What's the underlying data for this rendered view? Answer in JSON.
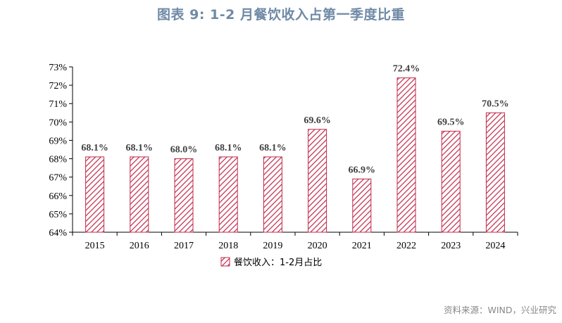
{
  "title": "图表 9:  1-2 月餐饮收入占第一季度比重",
  "source": "资料来源：WIND，兴业研究",
  "chart_data": {
    "type": "bar",
    "categories": [
      "2015",
      "2016",
      "2017",
      "2018",
      "2019",
      "2020",
      "2021",
      "2022",
      "2023",
      "2024"
    ],
    "series": [
      {
        "name": "餐饮收入：1-2月占比",
        "values": [
          68.1,
          68.1,
          68.0,
          68.1,
          68.1,
          69.6,
          66.9,
          72.4,
          69.5,
          70.5
        ],
        "labels": [
          "68.1%",
          "68.1%",
          "68.0%",
          "68.1%",
          "68.1%",
          "69.6%",
          "66.9%",
          "72.4%",
          "69.5%",
          "70.5%"
        ]
      }
    ],
    "ylim": [
      64,
      73
    ],
    "yticks": [
      64,
      65,
      66,
      67,
      68,
      69,
      70,
      71,
      72,
      73
    ],
    "ytick_labels": [
      "64%",
      "65%",
      "66%",
      "67%",
      "68%",
      "69%",
      "70%",
      "71%",
      "72%",
      "73%"
    ],
    "legend_position": "bottom",
    "grid": false,
    "bar_color": "#c0284a"
  }
}
